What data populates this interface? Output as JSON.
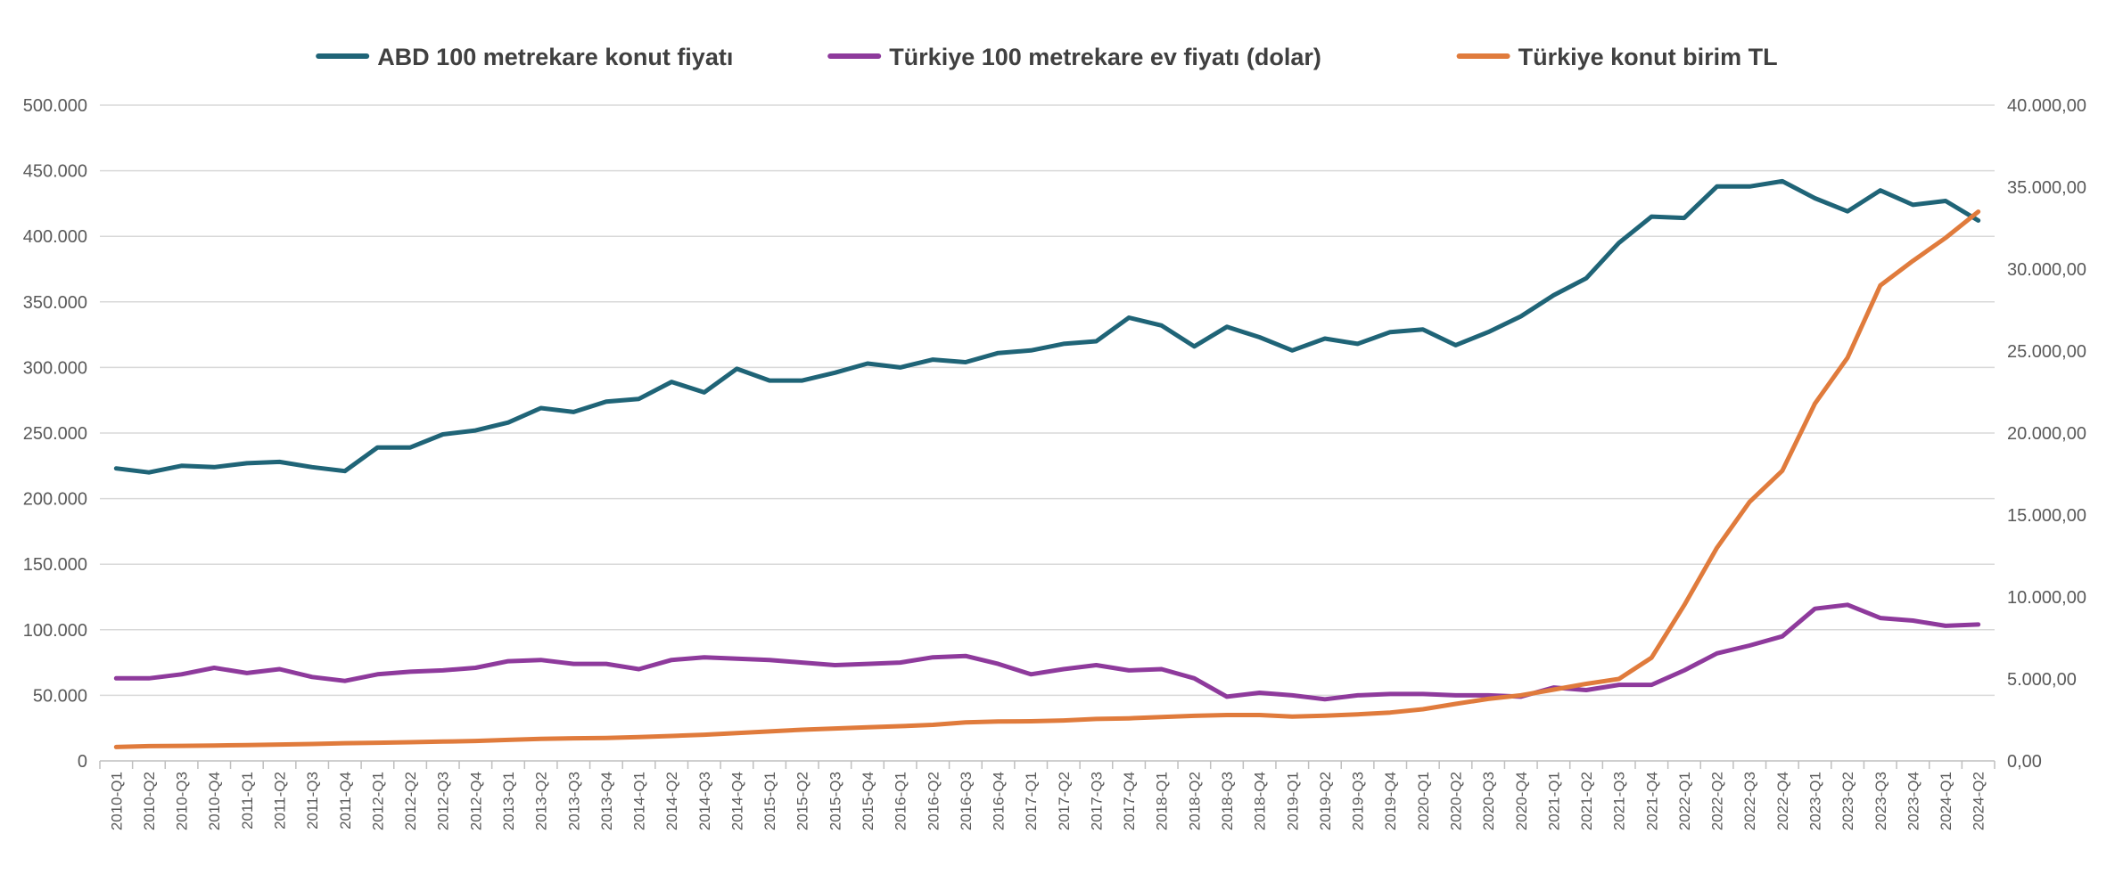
{
  "chart_data": {
    "type": "line",
    "title": "",
    "legend_position": "top-center",
    "grid": true,
    "x": [
      "2010-Q1",
      "2010-Q2",
      "2010-Q3",
      "2010-Q4",
      "2011-Q1",
      "2011-Q2",
      "2011-Q3",
      "2011-Q4",
      "2012-Q1",
      "2012-Q2",
      "2012-Q3",
      "2012-Q4",
      "2013-Q1",
      "2013-Q2",
      "2013-Q3",
      "2013-Q4",
      "2014-Q1",
      "2014-Q2",
      "2014-Q3",
      "2014-Q4",
      "2015-Q1",
      "2015-Q2",
      "2015-Q3",
      "2015-Q4",
      "2016-Q1",
      "2016-Q2",
      "2016-Q3",
      "2016-Q4",
      "2017-Q1",
      "2017-Q2",
      "2017-Q3",
      "2017-Q4",
      "2018-Q1",
      "2018-Q2",
      "2018-Q3",
      "2018-Q4",
      "2019-Q1",
      "2019-Q2",
      "2019-Q3",
      "2019-Q4",
      "2020-Q1",
      "2020-Q2",
      "2020-Q3",
      "2020-Q4",
      "2021-Q1",
      "2021-Q2",
      "2021-Q3",
      "2021-Q4",
      "2022-Q1",
      "2022-Q2",
      "2022-Q3",
      "2022-Q4",
      "2023-Q1",
      "2023-Q2",
      "2023-Q3",
      "2023-Q4",
      "2024-Q1",
      "2024-Q2"
    ],
    "y_left": {
      "ylim": [
        0,
        500000
      ],
      "ticks": [
        0,
        50000,
        100000,
        150000,
        200000,
        250000,
        300000,
        350000,
        400000,
        450000,
        500000
      ],
      "tick_labels": [
        "0",
        "50.000",
        "100.000",
        "150.000",
        "200.000",
        "250.000",
        "300.000",
        "350.000",
        "400.000",
        "450.000",
        "500.000"
      ]
    },
    "y_right": {
      "ylim": [
        0,
        40000
      ],
      "ticks": [
        0,
        5000,
        10000,
        15000,
        20000,
        25000,
        30000,
        35000,
        40000
      ],
      "tick_labels": [
        "0,00",
        "5.000,00",
        "10.000,00",
        "15.000,00",
        "20.000,00",
        "25.000,00",
        "30.000,00",
        "35.000,00",
        "40.000,00"
      ]
    },
    "series": [
      {
        "name": "ABD 100 metrekare konut fiyatı",
        "axis": "left",
        "color": "#1f6477",
        "values": [
          223000,
          220000,
          225000,
          224000,
          227000,
          228000,
          224000,
          221000,
          239000,
          239000,
          249000,
          252000,
          258000,
          269000,
          266000,
          274000,
          276000,
          289000,
          281000,
          299000,
          290000,
          290000,
          296000,
          303000,
          300000,
          306000,
          304000,
          311000,
          313000,
          318000,
          320000,
          338000,
          332000,
          316000,
          331000,
          323000,
          313000,
          322000,
          318000,
          327000,
          329000,
          317000,
          327000,
          339000,
          355000,
          368000,
          395000,
          415000,
          414000,
          438000,
          438000,
          442000,
          429000,
          419000,
          435000,
          424000,
          427000,
          412000
        ]
      },
      {
        "name": "Türkiye 100 metrekare ev fiyatı (dolar)",
        "axis": "left",
        "color": "#8e3a9c",
        "values": [
          63000,
          63000,
          66000,
          71000,
          67000,
          70000,
          64000,
          61000,
          66000,
          68000,
          69000,
          71000,
          76000,
          77000,
          74000,
          74000,
          70000,
          77000,
          79000,
          78000,
          77000,
          75000,
          73000,
          74000,
          75000,
          79000,
          80000,
          74000,
          66000,
          70000,
          73000,
          69000,
          70000,
          63000,
          49000,
          52000,
          50000,
          47000,
          50000,
          51000,
          51000,
          50000,
          50000,
          49000,
          56000,
          54000,
          58000,
          58000,
          69000,
          82000,
          88000,
          95000,
          116000,
          119000,
          109000,
          107000,
          103000,
          104000
        ]
      },
      {
        "name": "Türkiye konut birim TL",
        "axis": "right",
        "color": "#e07b3c",
        "values": [
          850,
          900,
          920,
          940,
          960,
          1000,
          1030,
          1080,
          1110,
          1140,
          1180,
          1220,
          1280,
          1340,
          1380,
          1400,
          1450,
          1520,
          1600,
          1700,
          1800,
          1900,
          1980,
          2050,
          2120,
          2200,
          2350,
          2400,
          2420,
          2470,
          2560,
          2600,
          2680,
          2750,
          2800,
          2800,
          2700,
          2760,
          2840,
          2950,
          3150,
          3480,
          3780,
          4000,
          4350,
          4700,
          5000,
          6300,
          9500,
          13000,
          15800,
          17700,
          21800,
          24600,
          29000,
          30500,
          31900,
          33500
        ]
      }
    ]
  }
}
